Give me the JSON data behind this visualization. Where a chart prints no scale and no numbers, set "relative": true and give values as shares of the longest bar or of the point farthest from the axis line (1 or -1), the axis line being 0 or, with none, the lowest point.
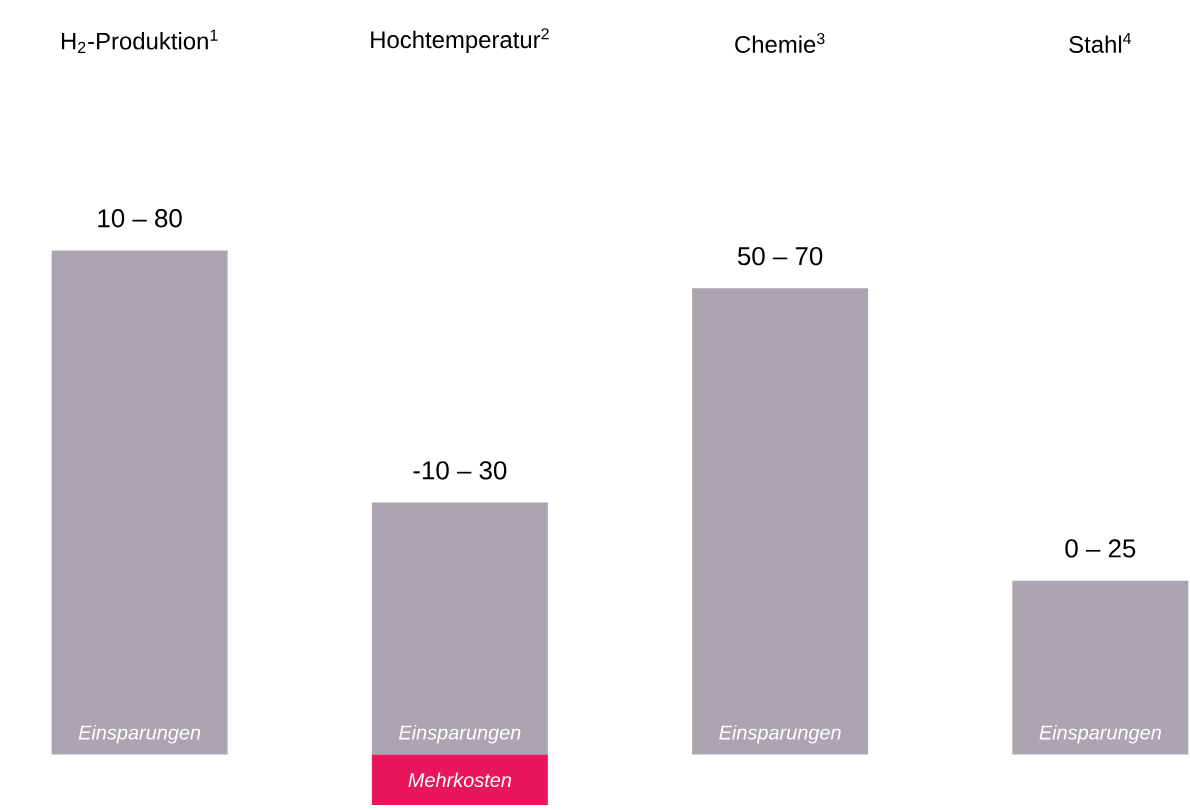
{
  "chart_data": {
    "type": "bar",
    "relative": true,
    "categories": [
      "H$_{2}$-Produktion$^{1}$",
      "Hochtemperatur$^{2}$",
      "Chemie$^{3}$",
      "Stahl$^{4}$"
    ],
    "series": [
      {
        "name": "Einsparungen",
        "color": "#aaa5b0",
        "values": [
          1,
          0.5,
          0.925,
          0.345
        ]
      },
      {
        "name": "Mehrkosten",
        "color": "#e8175d",
        "values": [
          null,
          -0.1,
          null,
          null
        ]
      }
    ],
    "annotations": [
      {
        "text": "10 – 80",
        "x": "H$_{2}$-Produktion$^{1}$",
        "y": 1
      },
      {
        "text": "-10 – 30",
        "x": "Hochtemperatur$^{2}$",
        "y": 0.5
      },
      {
        "text": "50 – 70",
        "x": "Chemie$^{3}$",
        "y": 0.925
      },
      {
        "text": "0 – 25",
        "x": "Stahl$^{4}$",
        "y": 0.345
      }
    ]
  }
}
